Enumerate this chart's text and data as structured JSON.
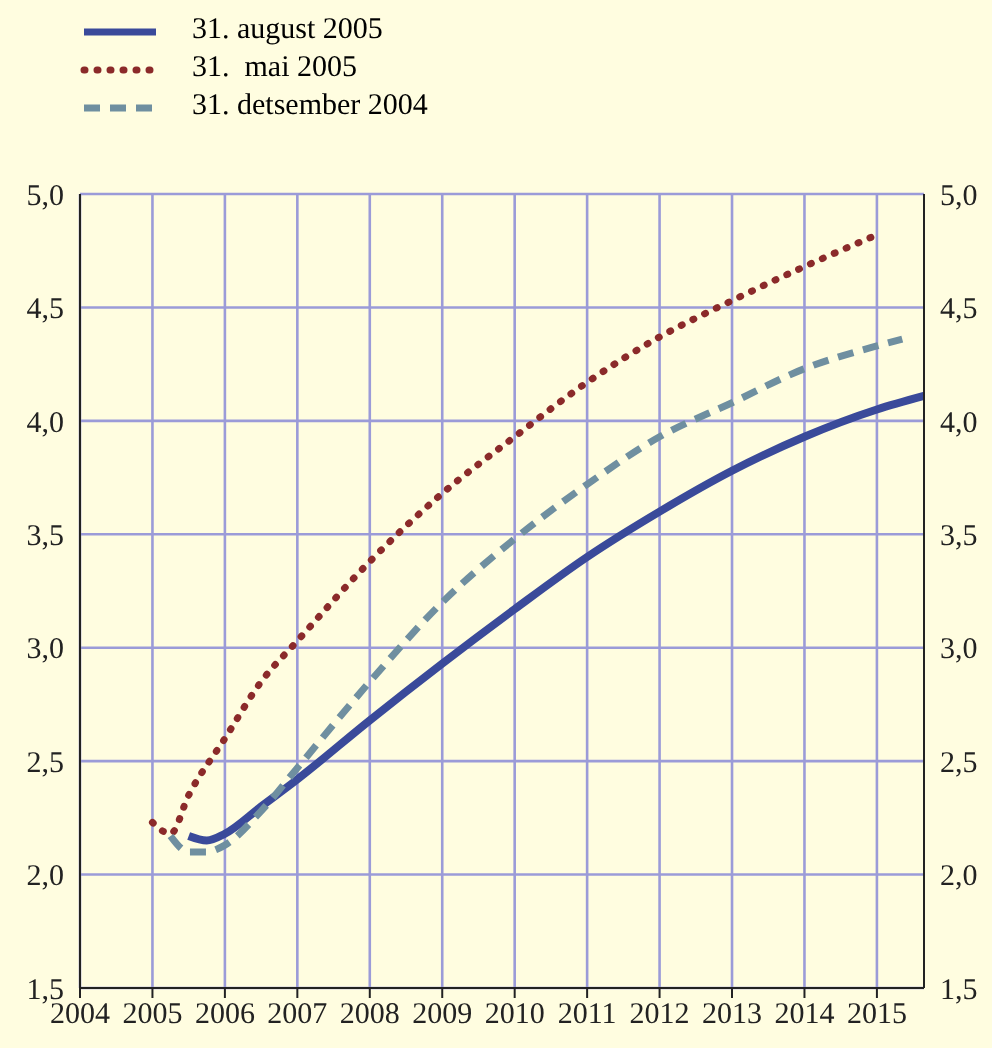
{
  "chart_data": {
    "type": "line",
    "legend": "top left",
    "grid": true,
    "xlim": [
      2004,
      2015.65
    ],
    "xticks": [
      2004,
      2005,
      2006,
      2007,
      2008,
      2009,
      2010,
      2011,
      2012,
      2013,
      2014,
      2015
    ],
    "ylim": [
      1.5,
      5.0
    ],
    "yticks": [
      {
        "value": 1.5,
        "label": "1,5"
      },
      {
        "value": 2.0,
        "label": "2,0"
      },
      {
        "value": 2.5,
        "label": "2,5"
      },
      {
        "value": 3.0,
        "label": "3,0"
      },
      {
        "value": 3.5,
        "label": "3,5"
      },
      {
        "value": 4.0,
        "label": "4,0"
      },
      {
        "value": 4.5,
        "label": "4,5"
      },
      {
        "value": 5.0,
        "label": "5,0"
      }
    ],
    "y2lim": [
      1.5,
      5.0
    ],
    "y2ticks": [
      {
        "value": 1.5,
        "label": "1,5"
      },
      {
        "value": 2.0,
        "label": "2,0"
      },
      {
        "value": 2.5,
        "label": "2,5"
      },
      {
        "value": 3.0,
        "label": "3,0"
      },
      {
        "value": 3.5,
        "label": "3,5"
      },
      {
        "value": 4.0,
        "label": "4,0"
      },
      {
        "value": 4.5,
        "label": "4,5"
      },
      {
        "value": 5.0,
        "label": "5,0"
      }
    ],
    "marker": "none",
    "series": [
      {
        "name": "31. august 2005",
        "color": "#3a4a9a",
        "line_style": "solid",
        "x": [
          2005.5,
          2005.75,
          2006,
          2006.5,
          2007,
          2008,
          2009,
          2010,
          2011,
          2012,
          2013,
          2014,
          2015,
          2015.65
        ],
        "values": [
          2.17,
          2.15,
          2.18,
          2.3,
          2.42,
          2.68,
          2.93,
          3.17,
          3.4,
          3.6,
          3.78,
          3.93,
          4.05,
          4.11
        ]
      },
      {
        "name": "31.  mai 2005",
        "color": "#8b2a2a",
        "line_style": "dotted",
        "x": [
          2005,
          2005.25,
          2005.5,
          2006,
          2006.5,
          2007,
          2008,
          2009,
          2010,
          2011,
          2012,
          2013,
          2014,
          2015
        ],
        "values": [
          2.23,
          2.18,
          2.35,
          2.6,
          2.85,
          3.03,
          3.38,
          3.68,
          3.93,
          4.17,
          4.37,
          4.53,
          4.68,
          4.82
        ]
      },
      {
        "name": "31. detsember 2004",
        "color": "#6f8fa0",
        "line_style": "dashed",
        "x": [
          2005.25,
          2005.5,
          2005.75,
          2006,
          2006.5,
          2007,
          2008,
          2009,
          2010,
          2011,
          2012,
          2013,
          2014,
          2015,
          2015.35
        ],
        "values": [
          2.17,
          2.1,
          2.1,
          2.13,
          2.28,
          2.47,
          2.85,
          3.2,
          3.48,
          3.72,
          3.93,
          4.08,
          4.23,
          4.33,
          4.36
        ]
      }
    ]
  }
}
